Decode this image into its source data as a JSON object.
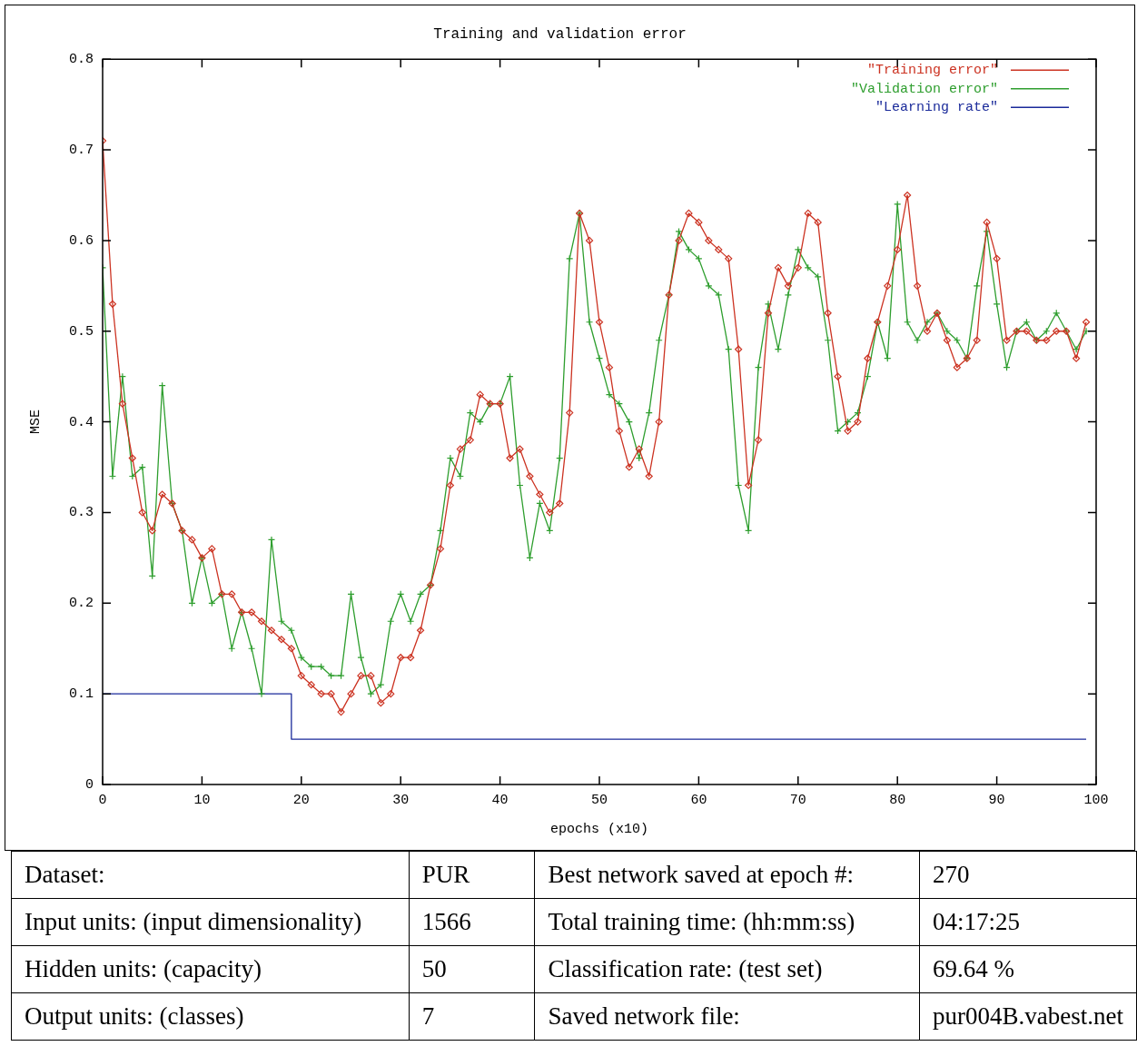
{
  "chart_data": {
    "type": "line",
    "title": "Training and validation error",
    "xlabel": "epochs (x10)",
    "ylabel": "MSE",
    "x": [
      0,
      1,
      2,
      3,
      4,
      5,
      6,
      7,
      8,
      9,
      10,
      11,
      12,
      13,
      14,
      15,
      16,
      17,
      18,
      19,
      20,
      21,
      22,
      23,
      24,
      25,
      26,
      27,
      28,
      29,
      30,
      31,
      32,
      33,
      34,
      35,
      36,
      37,
      38,
      39,
      40,
      41,
      42,
      43,
      44,
      45,
      46,
      47,
      48,
      49,
      50,
      51,
      52,
      53,
      54,
      55,
      56,
      57,
      58,
      59,
      60,
      61,
      62,
      63,
      64,
      65,
      66,
      67,
      68,
      69,
      70,
      71,
      72,
      73,
      74,
      75,
      76,
      77,
      78,
      79,
      80,
      81,
      82,
      83,
      84,
      85,
      86,
      87,
      88,
      89,
      90,
      91,
      92,
      93,
      94,
      95,
      96,
      97,
      98,
      99
    ],
    "series": [
      {
        "name": "\"Training error\"",
        "color": "#cc3322",
        "marker": "diamond",
        "values": [
          0.71,
          0.53,
          0.42,
          0.36,
          0.3,
          0.28,
          0.32,
          0.31,
          0.28,
          0.27,
          0.25,
          0.26,
          0.21,
          0.21,
          0.19,
          0.19,
          0.18,
          0.17,
          0.16,
          0.15,
          0.12,
          0.11,
          0.1,
          0.1,
          0.08,
          0.1,
          0.12,
          0.12,
          0.09,
          0.1,
          0.14,
          0.14,
          0.17,
          0.22,
          0.26,
          0.33,
          0.37,
          0.38,
          0.43,
          0.42,
          0.42,
          0.36,
          0.37,
          0.34,
          0.32,
          0.3,
          0.31,
          0.41,
          0.63,
          0.6,
          0.51,
          0.46,
          0.39,
          0.35,
          0.37,
          0.34,
          0.4,
          0.54,
          0.6,
          0.63,
          0.62,
          0.6,
          0.59,
          0.58,
          0.48,
          0.33,
          0.38,
          0.52,
          0.57,
          0.55,
          0.57,
          0.63,
          0.62,
          0.52,
          0.45,
          0.39,
          0.4,
          0.47,
          0.51,
          0.55,
          0.59,
          0.65,
          0.55,
          0.5,
          0.52,
          0.49,
          0.46,
          0.47,
          0.49,
          0.62,
          0.58,
          0.49,
          0.5,
          0.5,
          0.49,
          0.49,
          0.5,
          0.5,
          0.47,
          0.51
        ]
      },
      {
        "name": "\"Validation error\"",
        "color": "#2e9e2e",
        "marker": "cross",
        "values": [
          0.57,
          0.34,
          0.45,
          0.34,
          0.35,
          0.23,
          0.44,
          0.31,
          0.28,
          0.2,
          0.25,
          0.2,
          0.21,
          0.15,
          0.19,
          0.15,
          0.1,
          0.27,
          0.18,
          0.17,
          0.14,
          0.13,
          0.13,
          0.12,
          0.12,
          0.21,
          0.14,
          0.1,
          0.11,
          0.18,
          0.21,
          0.18,
          0.21,
          0.22,
          0.28,
          0.36,
          0.34,
          0.41,
          0.4,
          0.42,
          0.42,
          0.45,
          0.33,
          0.25,
          0.31,
          0.28,
          0.36,
          0.58,
          0.63,
          0.51,
          0.47,
          0.43,
          0.42,
          0.4,
          0.36,
          0.41,
          0.49,
          0.54,
          0.61,
          0.59,
          0.58,
          0.55,
          0.54,
          0.48,
          0.33,
          0.28,
          0.46,
          0.53,
          0.48,
          0.54,
          0.59,
          0.57,
          0.56,
          0.49,
          0.39,
          0.4,
          0.41,
          0.45,
          0.51,
          0.47,
          0.64,
          0.51,
          0.49,
          0.51,
          0.52,
          0.5,
          0.49,
          0.47,
          0.55,
          0.61,
          0.53,
          0.46,
          0.5,
          0.51,
          0.49,
          0.5,
          0.52,
          0.5,
          0.48,
          0.5
        ]
      },
      {
        "name": "\"Learning rate\"",
        "color": "#1a2a9a",
        "type": "step",
        "marker": "none",
        "x": [
          0,
          19,
          99
        ],
        "values": [
          0.1,
          0.05,
          0.05
        ]
      }
    ],
    "xlim": [
      0,
      100
    ],
    "xticks": [
      0,
      10,
      20,
      30,
      40,
      50,
      60,
      70,
      80,
      90,
      100
    ],
    "ylim": [
      0,
      0.8
    ],
    "yticks": [
      0,
      0.1,
      0.2,
      0.3,
      0.4,
      0.5,
      0.6,
      0.7,
      0.8
    ],
    "legend": "top right",
    "annotations": [
      "Dataset:",
      "PUR",
      "Best network saved at epoch #:",
      "270",
      "Input units: (input dimensionality)",
      "1566",
      "Total training time: (hh:mm:ss)",
      "04:17:25",
      "Hidden units: (capacity)",
      "50",
      "Classification rate: (test set)",
      "69.64 %",
      "Output units: (classes)",
      "7",
      "Saved network file:",
      "pur004B.vabest.net"
    ]
  }
}
